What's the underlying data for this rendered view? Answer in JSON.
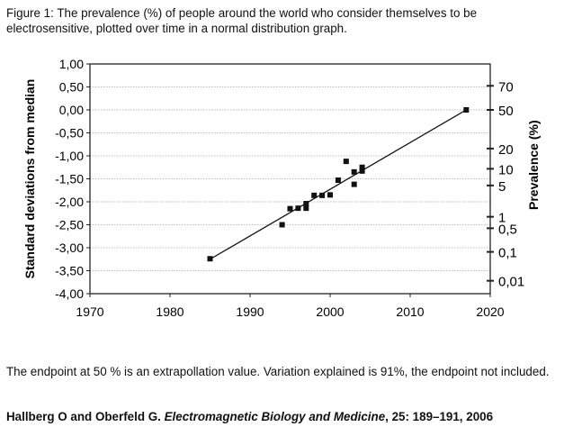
{
  "caption": "Figure 1: The prevalence (%) of people around the world who consider themselves to be electrosensitive, plotted over time in a normal distribution graph.",
  "note": "The endpoint at 50 % is an extrapollation value. Variation explained is 91%, the endpoint not included.",
  "citation": {
    "authors": "Hallberg O and Oberfeld G. ",
    "journal": "Electromagnetic Biology and Medicine",
    "details": ", 25: 189–191, 2006"
  },
  "chart_data": {
    "type": "scatter",
    "ylabel": "Standard deviations from median",
    "y2label": "Prevalence (%)",
    "xlim": [
      1970,
      2020
    ],
    "ylim": [
      -4,
      1
    ],
    "xticks": [
      1970,
      1980,
      1990,
      2000,
      2010,
      2020
    ],
    "yticks": [
      1,
      0.5,
      0,
      -0.5,
      -1,
      -1.5,
      -2,
      -2.5,
      -3,
      -3.5,
      -4
    ],
    "ytick_labels": [
      "1,00",
      "0,50",
      "0,00",
      "-0,50",
      "-1,00",
      "-1,50",
      "-2,00",
      "-2,50",
      "-3,00",
      "-3,50",
      "-4,00"
    ],
    "y2ticks": [
      70,
      50,
      20,
      10,
      5,
      1,
      0.5,
      0.1,
      0.01
    ],
    "y2tick_labels": [
      "70",
      "50",
      "20",
      "10",
      "5",
      "1",
      "0,5",
      "0,1",
      "0,01"
    ],
    "grid": "horizontal dotted",
    "points": [
      {
        "x": 1985,
        "y": -3.24
      },
      {
        "x": 1994,
        "y": -2.5
      },
      {
        "x": 1995,
        "y": -2.15
      },
      {
        "x": 1996,
        "y": -2.14
      },
      {
        "x": 1997,
        "y": -2.04
      },
      {
        "x": 1997,
        "y": -2.14
      },
      {
        "x": 1998,
        "y": -1.86
      },
      {
        "x": 1999,
        "y": -1.86
      },
      {
        "x": 2000,
        "y": -1.85
      },
      {
        "x": 2001,
        "y": -1.53
      },
      {
        "x": 2002,
        "y": -1.12
      },
      {
        "x": 2003,
        "y": -1.35
      },
      {
        "x": 2003,
        "y": -1.62
      },
      {
        "x": 2004,
        "y": -1.25
      },
      {
        "x": 2004,
        "y": -1.33
      },
      {
        "x": 2017,
        "y": 0.0
      }
    ],
    "trendline": [
      {
        "x": 1985,
        "y": -3.25
      },
      {
        "x": 2017,
        "y": 0.0
      }
    ],
    "colors": {
      "marker": "#111111",
      "grid": "#bbbbbb"
    }
  }
}
